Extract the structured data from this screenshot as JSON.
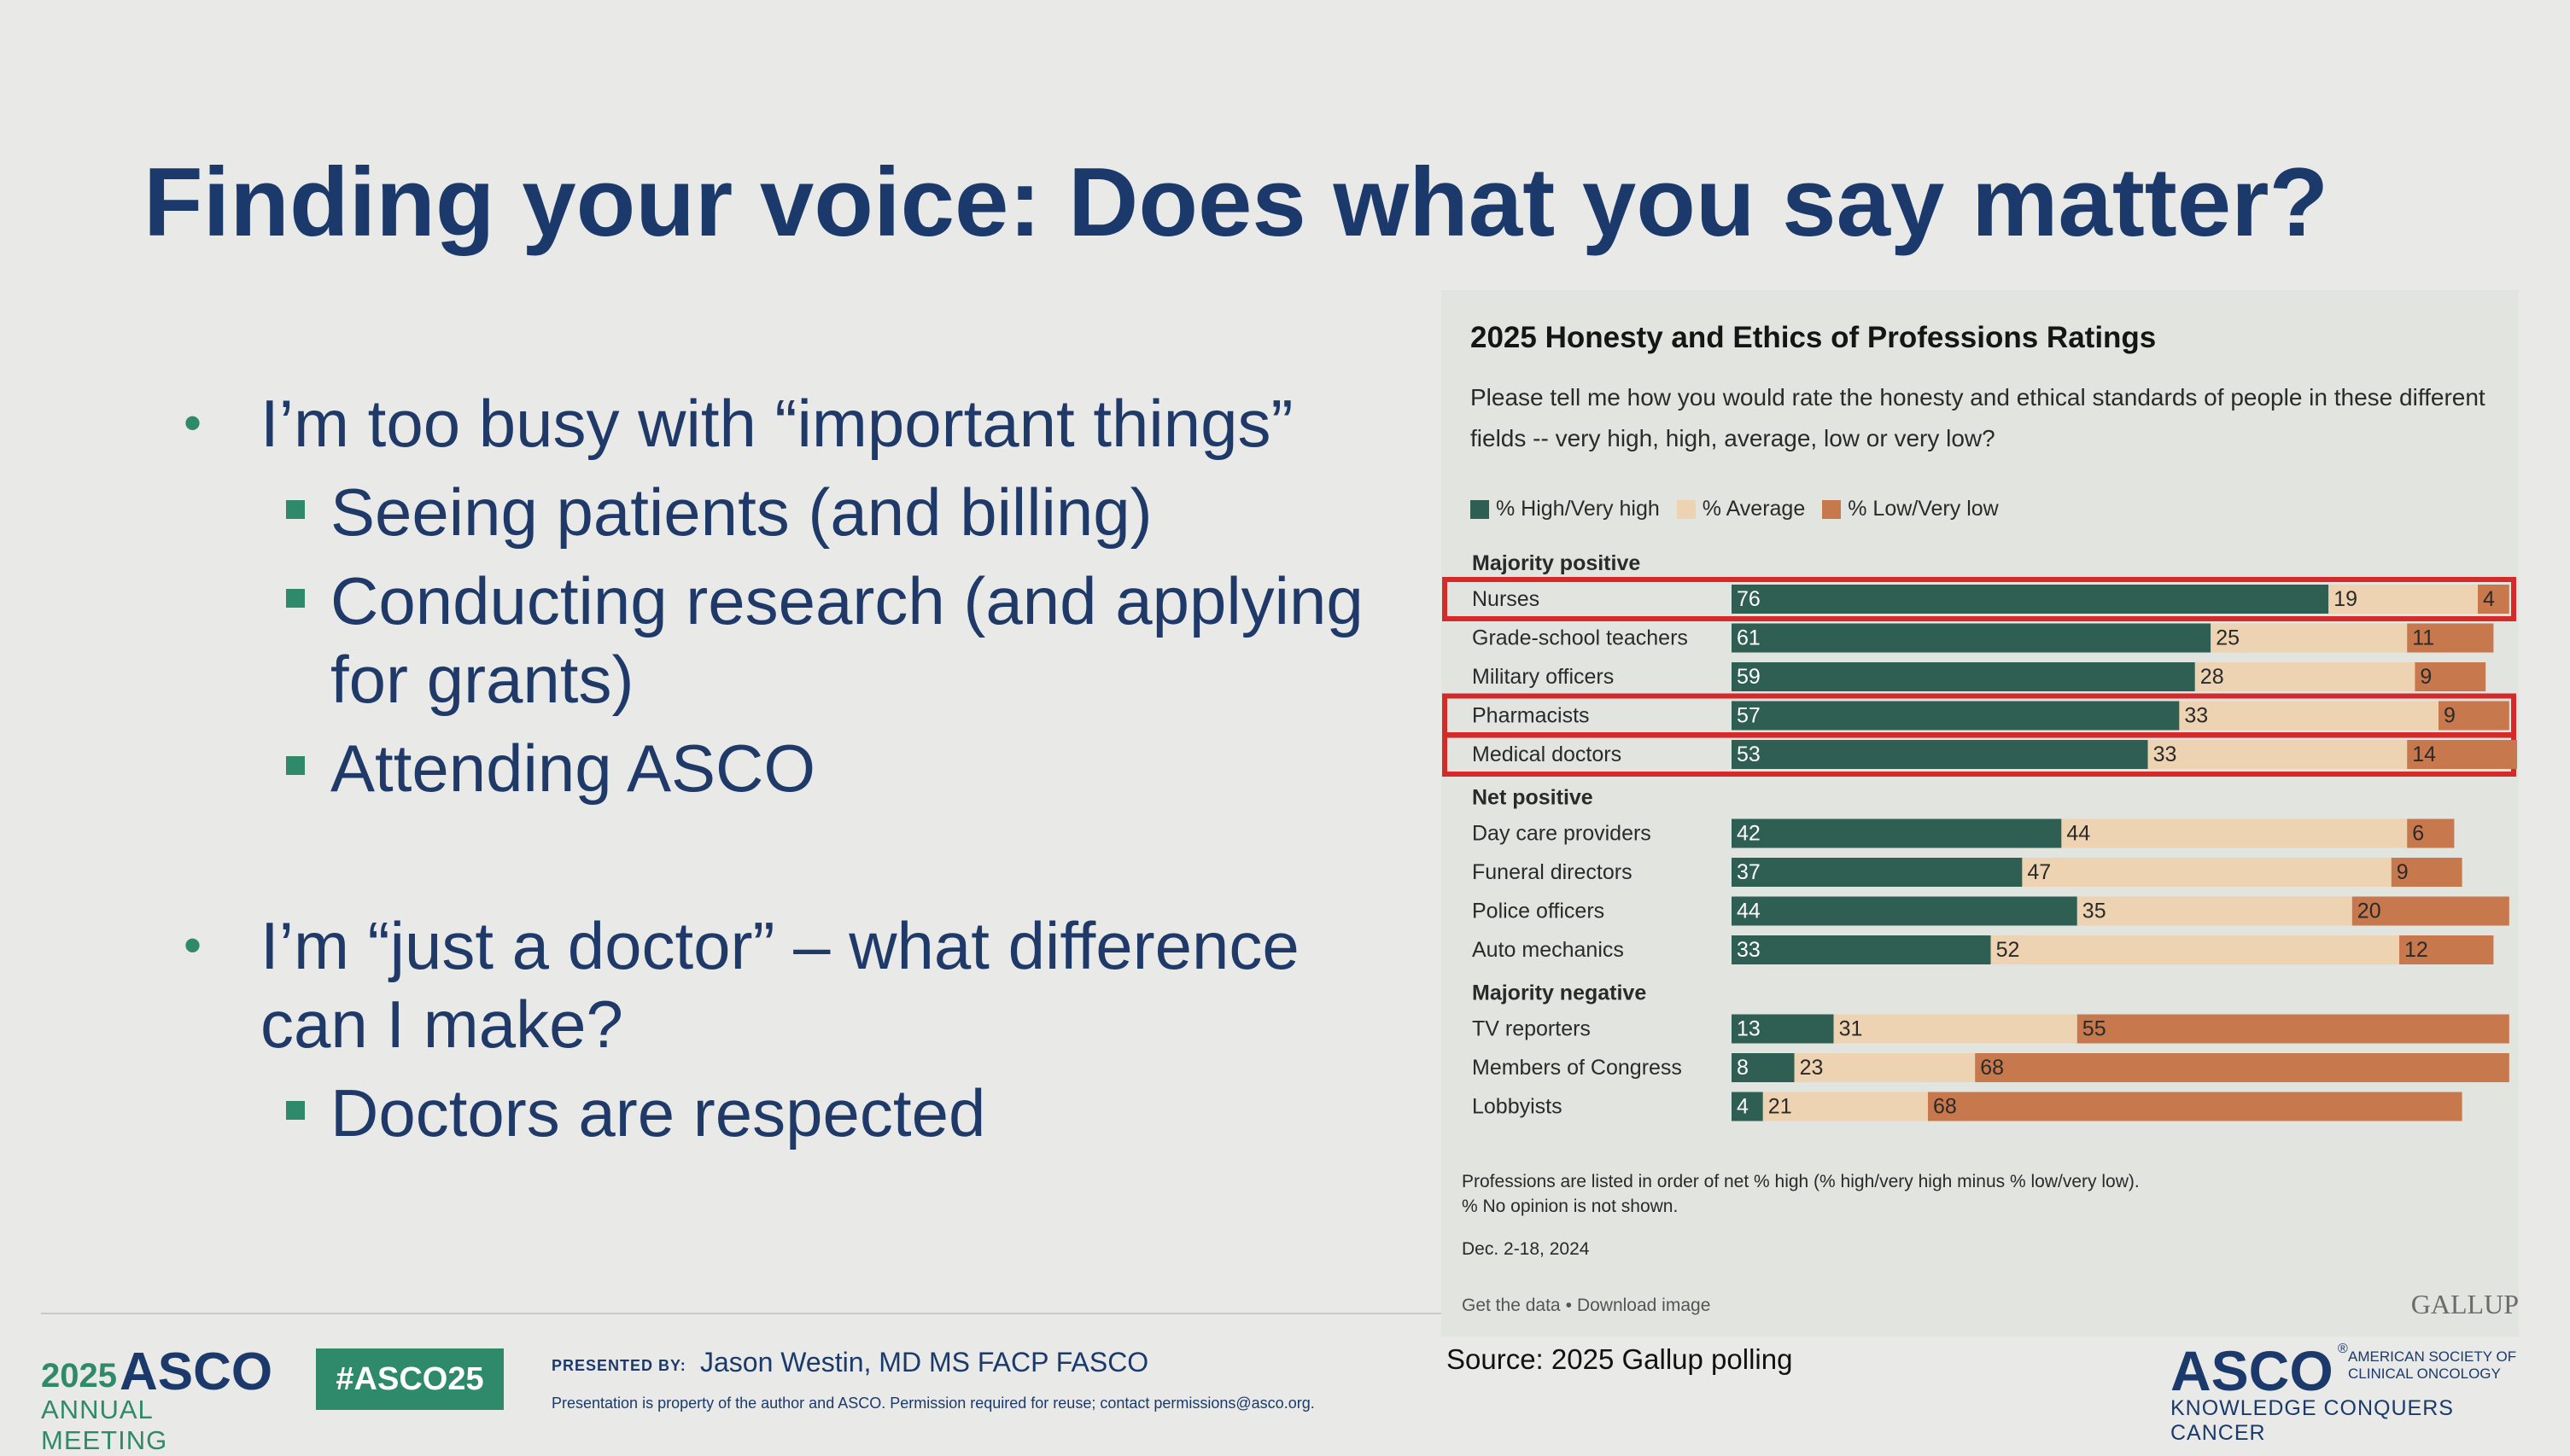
{
  "slide": {
    "title": "Finding your voice: Does what you say matter?",
    "bullets": [
      {
        "text": "I’m too busy with “important things”",
        "level": 1
      },
      {
        "text": "Seeing patients (and billing)",
        "level": 2
      },
      {
        "text": "Conducting research (and applying for grants)",
        "level": 2
      },
      {
        "text": "Attending ASCO",
        "level": 2
      },
      {
        "text": "I’m “just a doctor” – what difference can I make?",
        "level": 1
      },
      {
        "text": "Doctors are respected",
        "level": 2
      }
    ],
    "source": "Source: 2025 Gallup polling"
  },
  "footer": {
    "meeting_year": "2025",
    "meeting_brand": "ASCO",
    "meeting_sub": "ANNUAL MEETING",
    "hashtag": "#ASCO25",
    "presented_by_label": "PRESENTED BY:",
    "presenter": "Jason Westin, MD MS FACP FASCO",
    "disclaimer": "Presentation is property of the author and ASCO. Permission required for reuse; contact permissions@asco.org.",
    "org_brand": "ASCO",
    "org_registered": "®",
    "org_name": "AMERICAN SOCIETY OF CLINICAL ONCOLOGY",
    "org_tagline": "KNOWLEDGE CONQUERS CANCER"
  },
  "panel": {
    "question": "Please tell me how you would rate the honesty and ethical standards of people in these different fields -- very high, high, average, low or very low?",
    "footnote_1": "Professions are listed in order of net % high (% high/very high minus % low/very low).",
    "footnote_2": "% No opinion is not shown.",
    "date": "Dec. 2-18, 2024",
    "link_data": "Get the data",
    "link_separator": "•",
    "link_image": "Download image",
    "logo": "GALLUP"
  },
  "chart_data": {
    "type": "bar",
    "orientation": "horizontal",
    "stacked": true,
    "title": "2025 Honesty and Ethics of Professions Ratings",
    "xlim": [
      0,
      100
    ],
    "series": [
      {
        "name": "% High/Very high",
        "color": "#2f5e52"
      },
      {
        "name": "% Average",
        "color": "#edd3b1"
      },
      {
        "name": "% Low/Very low",
        "color": "#c8784d"
      }
    ],
    "groups": [
      {
        "label": "Majority positive",
        "rows": [
          {
            "category": "Nurses",
            "values": [
              76,
              19,
              4
            ],
            "highlighted": true
          },
          {
            "category": "Grade-school teachers",
            "values": [
              61,
              25,
              11
            ],
            "highlighted": false
          },
          {
            "category": "Military officers",
            "values": [
              59,
              28,
              9
            ],
            "highlighted": false
          },
          {
            "category": "Pharmacists",
            "values": [
              57,
              33,
              9
            ],
            "highlighted": true
          },
          {
            "category": "Medical doctors",
            "values": [
              53,
              33,
              14
            ],
            "highlighted": true
          }
        ]
      },
      {
        "label": "Net positive",
        "rows": [
          {
            "category": "Day care providers",
            "values": [
              42,
              44,
              6
            ],
            "highlighted": false
          },
          {
            "category": "Funeral directors",
            "values": [
              37,
              47,
              9
            ],
            "highlighted": false
          },
          {
            "category": "Police officers",
            "values": [
              44,
              35,
              20
            ],
            "highlighted": false
          },
          {
            "category": "Auto mechanics",
            "values": [
              33,
              52,
              12
            ],
            "highlighted": false
          }
        ]
      },
      {
        "label": "Majority negative",
        "rows": [
          {
            "category": "TV reporters",
            "values": [
              13,
              31,
              55
            ],
            "highlighted": false
          },
          {
            "category": "Members of Congress",
            "values": [
              8,
              23,
              68
            ],
            "highlighted": false
          },
          {
            "category": "Lobbyists",
            "values": [
              4,
              21,
              68
            ],
            "highlighted": false
          }
        ]
      }
    ],
    "highlight_color": "#d42a2a"
  }
}
